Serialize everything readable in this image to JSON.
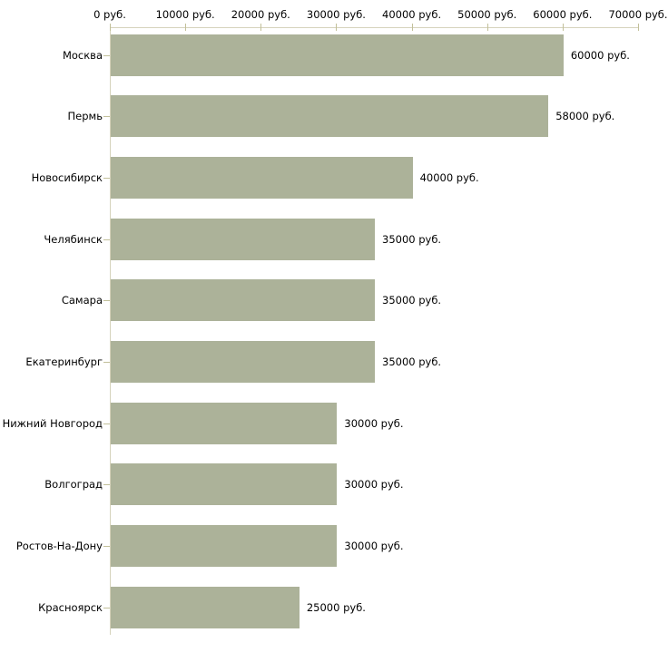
{
  "chart_data": {
    "type": "bar",
    "orientation": "horizontal",
    "title": "",
    "xlabel": "",
    "ylabel": "",
    "unit": "руб.",
    "categories": [
      "Москва",
      "Пермь",
      "Новосибирск",
      "Челябинск",
      "Самара",
      "Екатеринбург",
      "Нижний Новгород",
      "Волгоград",
      "Ростов-На-Дону",
      "Красноярск"
    ],
    "values": [
      60000,
      58000,
      40000,
      35000,
      35000,
      35000,
      30000,
      30000,
      30000,
      25000
    ],
    "value_labels": [
      "60000 руб.",
      "58000 руб.",
      "40000 руб.",
      "35000 руб.",
      "35000 руб.",
      "35000 руб.",
      "30000 руб.",
      "30000 руб.",
      "30000 руб.",
      "25000 руб."
    ],
    "xlim": [
      0,
      70000
    ],
    "x_ticks": [
      {
        "value": 0,
        "label": "0 руб."
      },
      {
        "value": 10000,
        "label": "10000 руб."
      },
      {
        "value": 20000,
        "label": "20000 руб."
      },
      {
        "value": 30000,
        "label": "30000 руб."
      },
      {
        "value": 40000,
        "label": "40000 руб."
      },
      {
        "value": 50000,
        "label": "50000 руб."
      },
      {
        "value": 60000,
        "label": "60000 руб."
      },
      {
        "value": 70000,
        "label": "70000 руб."
      }
    ],
    "grid": false,
    "legend": false,
    "axis_position": "top",
    "colors": {
      "bar": "#acb299",
      "axis_line": "#d6d3bc",
      "tick": "#c2c09a",
      "text": "#000000",
      "background": "#ffffff"
    }
  }
}
